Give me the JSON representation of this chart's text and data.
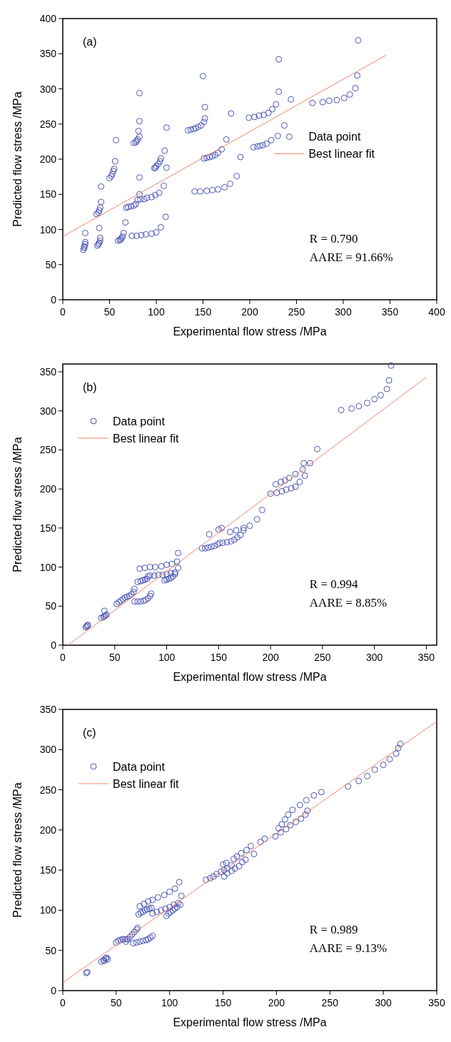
{
  "chart_data": [
    {
      "type": "scatter",
      "xlabel": "Experimental flow stress /MPa",
      "ylabel": "Predicted flow stress /MPa",
      "annotations": [
        "(a)",
        "R = 0.790",
        "AARE = 91.66%"
      ],
      "xlim": [
        0,
        400
      ],
      "ylim": [
        0,
        400
      ],
      "xticks": [
        0,
        50,
        100,
        150,
        200,
        250,
        300,
        350,
        400
      ],
      "yticks": [
        0,
        50,
        100,
        150,
        200,
        250,
        300,
        350,
        400
      ],
      "legend": "right",
      "series": [
        {
          "name": "Data point",
          "marker": "circle",
          "color": "#4b55b8",
          "x": [
            22,
            23,
            23,
            24,
            24,
            24,
            37,
            38,
            39,
            40,
            40,
            39,
            36,
            38,
            39,
            40,
            41,
            41,
            50,
            52,
            53,
            54,
            55,
            56,
            57,
            59,
            61,
            62,
            63,
            64,
            65,
            67,
            74,
            79,
            84,
            89,
            95,
            100,
            105,
            110,
            68,
            70,
            73,
            76,
            78,
            80,
            83,
            87,
            90,
            95,
            99,
            103,
            108,
            82,
            82,
            76,
            78,
            79,
            80,
            82,
            81,
            82,
            82,
            98,
            99,
            100,
            102,
            104,
            105,
            109,
            111,
            111,
            134,
            137,
            140,
            142,
            145,
            148,
            151,
            152,
            152,
            150,
            141,
            147,
            154,
            160,
            166,
            173,
            179,
            186,
            151,
            154,
            157,
            160,
            163,
            166,
            170,
            175,
            180,
            190,
            199,
            205,
            210,
            215,
            220,
            224,
            228,
            231,
            231,
            244,
            204,
            208,
            211,
            214,
            218,
            223,
            230,
            237,
            267,
            278,
            285,
            293,
            301,
            307,
            313,
            315,
            316
          ],
          "values": [
            71,
            74,
            76,
            79,
            82,
            95,
            77,
            79,
            81,
            84,
            88,
            102,
            122,
            124,
            127,
            131,
            139,
            161,
            173,
            176,
            179,
            183,
            186,
            197,
            227,
            84,
            85,
            86,
            88,
            90,
            95,
            110,
            91,
            91,
            92,
            93,
            94,
            96,
            103,
            118,
            131,
            132,
            133,
            134,
            136,
            142,
            143,
            143,
            145,
            146,
            149,
            152,
            162,
            150,
            174,
            223,
            224,
            226,
            228,
            232,
            240,
            254,
            294,
            187,
            188,
            190,
            193,
            197,
            201,
            212,
            188,
            245,
            241,
            242,
            243,
            244,
            246,
            248,
            253,
            258,
            274,
            318,
            154,
            154,
            155,
            156,
            157,
            160,
            165,
            176,
            201,
            202,
            203,
            204,
            206,
            209,
            214,
            228,
            265,
            203,
            259,
            260,
            262,
            263,
            266,
            271,
            278,
            296,
            342,
            285,
            217,
            218,
            219,
            220,
            222,
            227,
            233,
            248,
            280,
            281,
            283,
            284,
            287,
            292,
            301,
            319,
            369
          ]
        },
        {
          "name": "Best linear fit",
          "type": "line",
          "color": "#f4856a",
          "x": [
            0,
            346
          ],
          "values": [
            90,
            348
          ]
        }
      ]
    },
    {
      "type": "scatter",
      "xlabel": "Experimental flow stress /MPa",
      "ylabel": "Predicted flow stress /MPa",
      "annotations": [
        "(b)",
        "R = 0.994",
        "AARE = 8.85%"
      ],
      "xlim": [
        0,
        360
      ],
      "ylim": [
        0,
        360
      ],
      "xticks": [
        0,
        50,
        100,
        150,
        200,
        250,
        300,
        350
      ],
      "yticks": [
        0,
        50,
        100,
        150,
        200,
        250,
        300,
        350
      ],
      "legend": "top left",
      "series": [
        {
          "name": "Data point",
          "marker": "circle",
          "color": "#4b55b8",
          "x": [
            22,
            23,
            24,
            24,
            37,
            39,
            40,
            41,
            42,
            40,
            52,
            54,
            56,
            58,
            60,
            62,
            64,
            66,
            68,
            69,
            69,
            72,
            75,
            78,
            80,
            82,
            84,
            85,
            72,
            75,
            77,
            79,
            81,
            82,
            74,
            79,
            84,
            89,
            95,
            100,
            105,
            110,
            111,
            84,
            88,
            92,
            96,
            100,
            104,
            108,
            98,
            100,
            102,
            104,
            106,
            108,
            111,
            134,
            137,
            140,
            143,
            146,
            149,
            151,
            141,
            150,
            154,
            158,
            162,
            165,
            168,
            171,
            174,
            153,
            161,
            167,
            174,
            180,
            187,
            192,
            200,
            206,
            211,
            215,
            220,
            224,
            228,
            205,
            210,
            214,
            218,
            224,
            231,
            233,
            232,
            238,
            245,
            268,
            278,
            285,
            293,
            300,
            306,
            312,
            314,
            316
          ],
          "values": [
            23,
            24,
            26,
            25,
            35,
            36,
            37,
            38,
            39,
            44,
            53,
            55,
            57,
            59,
            61,
            62,
            63,
            65,
            68,
            72,
            56,
            56,
            56,
            57,
            58,
            60,
            63,
            66,
            81,
            82,
            83,
            84,
            85,
            88,
            98,
            99,
            100,
            100,
            101,
            103,
            104,
            107,
            118,
            89,
            89,
            90,
            90,
            91,
            92,
            93,
            83,
            84,
            85,
            86,
            88,
            91,
            99,
            124,
            124,
            125,
            126,
            127,
            129,
            131,
            142,
            148,
            131,
            132,
            133,
            135,
            138,
            141,
            147,
            150,
            145,
            147,
            150,
            153,
            161,
            173,
            194,
            195,
            197,
            199,
            201,
            203,
            209,
            206,
            209,
            211,
            214,
            219,
            225,
            217,
            233,
            233,
            251,
            301,
            303,
            306,
            310,
            315,
            320,
            328,
            339,
            358
          ]
        },
        {
          "name": "Best linear fit",
          "type": "line",
          "color": "#f4856a",
          "x": [
            5,
            350
          ],
          "values": [
            0,
            343
          ]
        }
      ]
    },
    {
      "type": "scatter",
      "xlabel": "Experimental flow stress /MPa",
      "ylabel": "Predicted flow stress /MPa",
      "annotations": [
        "(c)",
        "R = 0.989",
        "AARE = 9.13%"
      ],
      "xlim": [
        0,
        350
      ],
      "ylim": [
        0,
        350
      ],
      "xticks": [
        0,
        50,
        100,
        150,
        200,
        250,
        300,
        350
      ],
      "yticks": [
        0,
        50,
        100,
        150,
        200,
        250,
        300,
        350
      ],
      "legend": "top left",
      "series": [
        {
          "name": "Data point",
          "marker": "circle",
          "color": "#4b55b8",
          "x": [
            22,
            23,
            36,
            38,
            40,
            41,
            39,
            42,
            50,
            52,
            54,
            56,
            58,
            60,
            59,
            61,
            63,
            65,
            67,
            69,
            70,
            66,
            69,
            72,
            75,
            78,
            80,
            82,
            84,
            71,
            73,
            75,
            77,
            79,
            81,
            83,
            72,
            76,
            80,
            84,
            89,
            95,
            100,
            105,
            109,
            84,
            88,
            92,
            96,
            100,
            104,
            108,
            111,
            97,
            99,
            101,
            103,
            105,
            107,
            110,
            134,
            138,
            141,
            144,
            148,
            151,
            154,
            158,
            150,
            153,
            151,
            154,
            158,
            161,
            165,
            168,
            171,
            179,
            160,
            163,
            167,
            172,
            176,
            185,
            189,
            199,
            204,
            209,
            213,
            218,
            223,
            227,
            229,
            202,
            205,
            208,
            211,
            215,
            222,
            228,
            235,
            242,
            267,
            277,
            285,
            292,
            300,
            306,
            312,
            314,
            316
          ],
          "values": [
            22,
            23,
            36,
            38,
            40,
            41,
            37,
            39,
            60,
            62,
            63,
            64,
            64,
            64,
            61,
            64,
            67,
            70,
            73,
            76,
            78,
            59,
            60,
            61,
            62,
            63,
            64,
            66,
            68,
            95,
            97,
            98,
            100,
            101,
            102,
            103,
            105,
            108,
            111,
            113,
            116,
            119,
            123,
            127,
            135,
            96,
            98,
            100,
            102,
            104,
            107,
            109,
            118,
            93,
            96,
            98,
            100,
            102,
            104,
            107,
            138,
            140,
            142,
            145,
            148,
            150,
            152,
            156,
            157,
            159,
            142,
            146,
            149,
            152,
            155,
            160,
            163,
            170,
            164,
            167,
            171,
            175,
            180,
            185,
            189,
            192,
            197,
            201,
            206,
            210,
            214,
            219,
            224,
            202,
            207,
            213,
            219,
            225,
            231,
            237,
            243,
            247,
            254,
            261,
            267,
            275,
            281,
            288,
            295,
            302,
            307
          ]
        },
        {
          "name": "Best linear fit",
          "type": "line",
          "color": "#f4856a",
          "x": [
            0,
            350
          ],
          "values": [
            10,
            335
          ]
        }
      ]
    }
  ]
}
